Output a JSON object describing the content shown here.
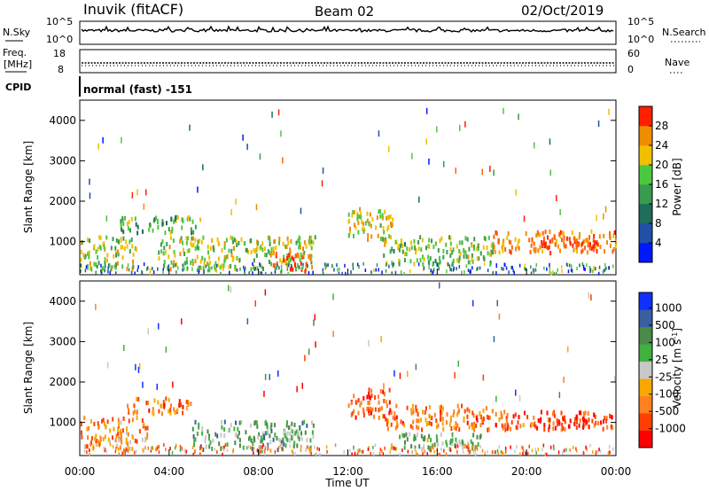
{
  "header": {
    "station": "Inuvik (fitACF)",
    "beam": "Beam 02",
    "date": "02/Oct/2019",
    "cpid_label": "CPID",
    "cpid_value": "normal (fast) -151"
  },
  "noise_panel": {
    "left_label": "N.Sky",
    "right_label": "N.Search",
    "left_ticks": [
      "10^5",
      "10^0"
    ],
    "right_ticks": [
      "10^5",
      "10^0"
    ]
  },
  "freq_panel": {
    "left_label_1": "Freq.",
    "left_label_2": "[MHz]",
    "right_label": "Nave",
    "left_ticks": [
      "18",
      "8"
    ],
    "right_ticks": [
      "60",
      "0"
    ]
  },
  "colors": {
    "power_scale": [
      "#0018ff",
      "#2050a8",
      "#1e6e5a",
      "#3a9a50",
      "#4cc840",
      "#f0c000",
      "#f08c00",
      "#ff6010",
      "#ff2000"
    ],
    "velocity_scale": [
      "#ff0000",
      "#ff4000",
      "#ff8020",
      "#f8a800",
      "#c8c8c8",
      "#40b040",
      "#4a8a4a",
      "#3860a0",
      "#1030ff"
    ]
  },
  "chart_data": [
    {
      "type": "heatmap",
      "name": "power",
      "xlabel": "",
      "ylabel": "Slant Range [km]",
      "y_ticks": [
        "1000",
        "2000",
        "3000",
        "4000"
      ],
      "ylim": [
        180,
        4500
      ],
      "colorbar_label": "Power [dB]",
      "colorbar_ticks": [
        "28",
        "24",
        "20",
        "16",
        "12",
        "8",
        "4"
      ],
      "colorbar_range": [
        0,
        32
      ],
      "patches": [
        {
          "t0": 0.0,
          "t1": 2.5,
          "r0": 300,
          "r1": 1100,
          "level": 0.55
        },
        {
          "t0": 1.8,
          "t1": 5.5,
          "r0": 1200,
          "r1": 1600,
          "level": 0.45
        },
        {
          "t0": 3.5,
          "t1": 10.5,
          "r0": 300,
          "r1": 1100,
          "level": 0.55
        },
        {
          "t0": 8.5,
          "t1": 10.3,
          "r0": 250,
          "r1": 700,
          "level": 0.9
        },
        {
          "t0": 12.0,
          "t1": 14.0,
          "r0": 1000,
          "r1": 1800,
          "level": 0.6
        },
        {
          "t0": 13.5,
          "t1": 18.5,
          "r0": 400,
          "r1": 1100,
          "level": 0.5
        },
        {
          "t0": 18.5,
          "t1": 24.0,
          "r0": 700,
          "r1": 1250,
          "level": 0.75
        },
        {
          "t0": 20.5,
          "t1": 23.0,
          "r0": 800,
          "r1": 1100,
          "level": 0.95
        }
      ]
    },
    {
      "type": "heatmap",
      "name": "velocity",
      "xlabel": "Time UT",
      "ylabel": "Slant Range [km]",
      "x_ticks": [
        "00:00",
        "04:00",
        "08:00",
        "12:00",
        "16:00",
        "20:00",
        "00:00"
      ],
      "y_ticks": [
        "1000",
        "2000",
        "3000",
        "4000"
      ],
      "ylim": [
        180,
        4500
      ],
      "colorbar_label": "Velocity [m s^-1]",
      "colorbar_ticks": [
        "1000",
        "500",
        "100",
        "25",
        "-25",
        "-100",
        "-500",
        "-1000"
      ],
      "patches": [
        {
          "t0": 0.0,
          "t1": 3.0,
          "r0": 300,
          "r1": 1100,
          "level": 0.3
        },
        {
          "t0": 2.0,
          "t1": 5.0,
          "r0": 1200,
          "r1": 1600,
          "level": 0.25
        },
        {
          "t0": 5.0,
          "t1": 10.5,
          "r0": 300,
          "r1": 1000,
          "level": 0.65
        },
        {
          "t0": 12.0,
          "t1": 14.0,
          "r0": 1100,
          "r1": 1800,
          "level": 0.2
        },
        {
          "t0": 13.5,
          "t1": 18.5,
          "r0": 800,
          "r1": 1400,
          "level": 0.25
        },
        {
          "t0": 14.0,
          "t1": 18.0,
          "r0": 300,
          "r1": 700,
          "level": 0.6
        },
        {
          "t0": 18.5,
          "t1": 24.0,
          "r0": 800,
          "r1": 1250,
          "level": 0.2
        },
        {
          "t0": 20.5,
          "t1": 23.0,
          "r0": 850,
          "r1": 1100,
          "level": 0.05
        }
      ]
    }
  ]
}
